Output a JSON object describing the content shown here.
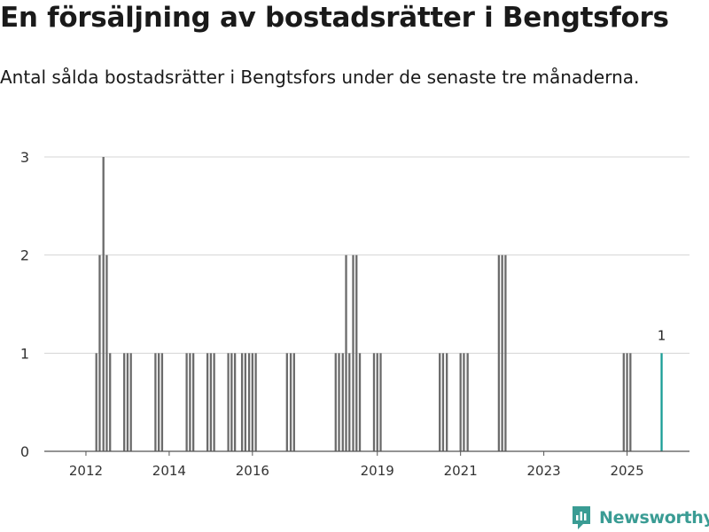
{
  "chart_data": {
    "type": "bar",
    "title": "En försäljning av bostadsrätter i Bengtsfors",
    "subtitle": "Antal sålda bostadsrätter i Bengtsfors under de senaste tre månaderna.",
    "xlabel": "",
    "ylabel": "",
    "ylim": [
      0,
      3
    ],
    "yticks": [
      "0",
      "1",
      "2",
      "3"
    ],
    "xticks": [
      "2012",
      "2014",
      "2016",
      "2019",
      "2021",
      "2023",
      "2025"
    ],
    "xtick_years": [
      2012.0,
      2014.0,
      2016.0,
      2019.0,
      2021.0,
      2023.0,
      2025.0
    ],
    "xrange": [
      2011.0,
      2026.5
    ],
    "grid": true,
    "colors": {
      "bar": "#6b6b6b",
      "highlight": "#1a9e97",
      "grid": "#d4d4d4",
      "axis": "#555555"
    },
    "series": [
      {
        "name": "Antal sålda bostadsrätter",
        "points": [
          {
            "t": 2012.25,
            "value": 1
          },
          {
            "t": 2012.33,
            "value": 2
          },
          {
            "t": 2012.42,
            "value": 3
          },
          {
            "t": 2012.5,
            "value": 2
          },
          {
            "t": 2012.58,
            "value": 1
          },
          {
            "t": 2012.92,
            "value": 1
          },
          {
            "t": 2013.0,
            "value": 1
          },
          {
            "t": 2013.08,
            "value": 1
          },
          {
            "t": 2013.67,
            "value": 1
          },
          {
            "t": 2013.75,
            "value": 1
          },
          {
            "t": 2013.83,
            "value": 1
          },
          {
            "t": 2014.42,
            "value": 1
          },
          {
            "t": 2014.5,
            "value": 1
          },
          {
            "t": 2014.58,
            "value": 1
          },
          {
            "t": 2014.92,
            "value": 1
          },
          {
            "t": 2015.0,
            "value": 1
          },
          {
            "t": 2015.08,
            "value": 1
          },
          {
            "t": 2015.42,
            "value": 1
          },
          {
            "t": 2015.5,
            "value": 1
          },
          {
            "t": 2015.58,
            "value": 1
          },
          {
            "t": 2015.75,
            "value": 1
          },
          {
            "t": 2015.83,
            "value": 1
          },
          {
            "t": 2015.92,
            "value": 1
          },
          {
            "t": 2016.0,
            "value": 1
          },
          {
            "t": 2016.08,
            "value": 1
          },
          {
            "t": 2016.83,
            "value": 1
          },
          {
            "t": 2016.92,
            "value": 1
          },
          {
            "t": 2017.0,
            "value": 1
          },
          {
            "t": 2018.0,
            "value": 1
          },
          {
            "t": 2018.08,
            "value": 1
          },
          {
            "t": 2018.17,
            "value": 1
          },
          {
            "t": 2018.25,
            "value": 2
          },
          {
            "t": 2018.33,
            "value": 1
          },
          {
            "t": 2018.42,
            "value": 2
          },
          {
            "t": 2018.5,
            "value": 2
          },
          {
            "t": 2018.58,
            "value": 1
          },
          {
            "t": 2018.92,
            "value": 1
          },
          {
            "t": 2019.0,
            "value": 1
          },
          {
            "t": 2019.08,
            "value": 1
          },
          {
            "t": 2020.5,
            "value": 1
          },
          {
            "t": 2020.58,
            "value": 1
          },
          {
            "t": 2020.67,
            "value": 1
          },
          {
            "t": 2021.0,
            "value": 1
          },
          {
            "t": 2021.08,
            "value": 1
          },
          {
            "t": 2021.17,
            "value": 1
          },
          {
            "t": 2021.92,
            "value": 2
          },
          {
            "t": 2022.0,
            "value": 2
          },
          {
            "t": 2022.08,
            "value": 2
          },
          {
            "t": 2024.92,
            "value": 1
          },
          {
            "t": 2025.0,
            "value": 1
          },
          {
            "t": 2025.08,
            "value": 1
          },
          {
            "t": 2025.83,
            "value": 1,
            "highlight": true,
            "label": "1"
          }
        ]
      }
    ]
  },
  "brand": {
    "name": "Newsworthy",
    "icon": "newsworthy-logo-icon"
  }
}
